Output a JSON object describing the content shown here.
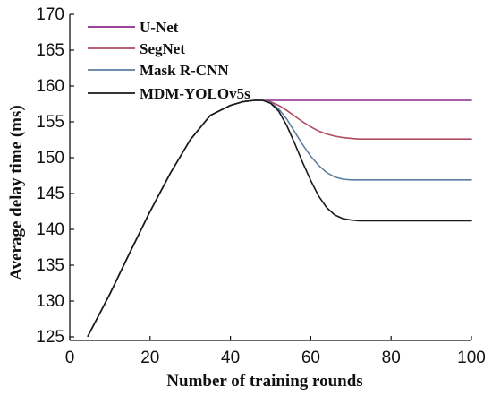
{
  "chart_data": {
    "type": "line",
    "title": "",
    "xlabel": "Number of training rounds",
    "ylabel": "Average delay time (ms)",
    "xlim": [
      0,
      100
    ],
    "ylim": [
      124.5,
      170
    ],
    "xticks": [
      0,
      20,
      40,
      60,
      80,
      100
    ],
    "yticks": [
      125,
      130,
      135,
      140,
      145,
      150,
      155,
      160,
      165,
      170
    ],
    "grid": false,
    "legend_position": "top-left",
    "x": [
      4.5,
      10,
      15,
      20,
      25,
      30,
      35,
      40,
      43,
      46,
      48,
      50,
      52,
      54,
      56,
      58,
      60,
      62,
      64,
      66,
      68,
      70,
      72,
      74,
      76,
      78,
      80,
      85,
      90,
      95,
      100
    ],
    "series": [
      {
        "name": "U-Net",
        "color": "#8b2a8c",
        "values": [
          125.1,
          131.0,
          136.8,
          142.5,
          147.8,
          152.5,
          155.9,
          157.3,
          157.8,
          158.0,
          158.0,
          158.0,
          158.0,
          158.0,
          158.0,
          158.0,
          158.0,
          158.0,
          158.0,
          158.0,
          158.0,
          158.0,
          158.0,
          158.0,
          158.0,
          158.0,
          158.0,
          158.0,
          158.0,
          158.0,
          158.0
        ]
      },
      {
        "name": "SegNet",
        "color": "#b04a5e",
        "values": [
          125.1,
          131.0,
          136.8,
          142.5,
          147.8,
          152.5,
          155.9,
          157.3,
          157.8,
          158.0,
          158.0,
          157.8,
          157.3,
          156.6,
          155.8,
          155.0,
          154.3,
          153.7,
          153.3,
          153.0,
          152.8,
          152.7,
          152.6,
          152.6,
          152.6,
          152.6,
          152.6,
          152.6,
          152.6,
          152.6,
          152.6
        ]
      },
      {
        "name": "Mask R-CNN",
        "color": "#5b7fa3",
        "values": [
          125.1,
          131.0,
          136.8,
          142.5,
          147.8,
          152.5,
          155.9,
          157.3,
          157.8,
          158.0,
          158.0,
          157.7,
          156.8,
          155.4,
          153.6,
          151.8,
          150.2,
          148.9,
          147.9,
          147.3,
          147.0,
          146.9,
          146.9,
          146.9,
          146.9,
          146.9,
          146.9,
          146.9,
          146.9,
          146.9,
          146.9
        ]
      },
      {
        "name": "MDM-YOLOv5s",
        "color": "#1a1a1a",
        "values": [
          125.1,
          131.0,
          136.8,
          142.5,
          147.8,
          152.5,
          155.9,
          157.3,
          157.8,
          158.0,
          158.0,
          157.6,
          156.5,
          154.5,
          152.0,
          149.3,
          146.8,
          144.6,
          143.0,
          142.0,
          141.5,
          141.3,
          141.2,
          141.2,
          141.2,
          141.2,
          141.2,
          141.2,
          141.2,
          141.2,
          141.2
        ]
      }
    ]
  }
}
